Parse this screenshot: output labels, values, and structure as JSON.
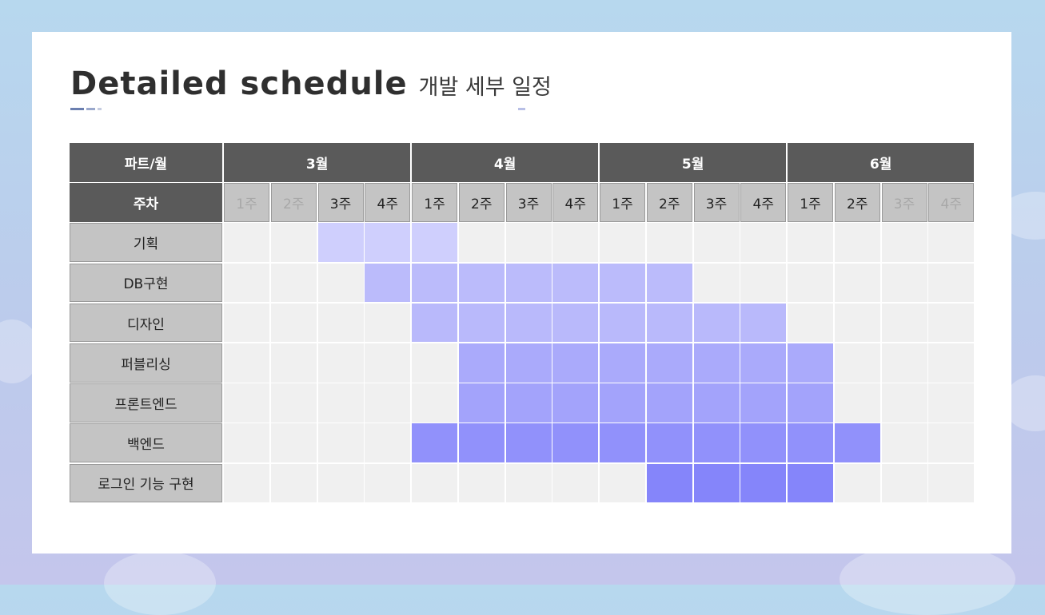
{
  "title": {
    "en": "Detailed schedule",
    "ko": "개발 세부 일정"
  },
  "colors": {
    "header_dark": "#5a5a5a",
    "week_cell": "#c4c4c4",
    "empty_cell": "#f0f0f0"
  },
  "table": {
    "part_month_label": "파트/월",
    "week_label": "주차",
    "months": [
      {
        "label": "3월"
      },
      {
        "label": "4월"
      },
      {
        "label": "5월"
      },
      {
        "label": "6월"
      }
    ],
    "weeks": [
      {
        "label": "1주",
        "dim": true
      },
      {
        "label": "2주",
        "dim": true
      },
      {
        "label": "3주",
        "dim": false
      },
      {
        "label": "4주",
        "dim": false
      },
      {
        "label": "1주",
        "dim": false
      },
      {
        "label": "2주",
        "dim": false
      },
      {
        "label": "3주",
        "dim": false
      },
      {
        "label": "4주",
        "dim": false
      },
      {
        "label": "1주",
        "dim": false
      },
      {
        "label": "2주",
        "dim": false
      },
      {
        "label": "3주",
        "dim": false
      },
      {
        "label": "4주",
        "dim": false
      },
      {
        "label": "1주",
        "dim": false
      },
      {
        "label": "2주",
        "dim": false
      },
      {
        "label": "3주",
        "dim": true
      },
      {
        "label": "4주",
        "dim": true
      }
    ],
    "tasks": [
      {
        "name": "기획",
        "start": 2,
        "end": 4,
        "color": "#cfcffd"
      },
      {
        "name": "DB구현",
        "start": 3,
        "end": 9,
        "color": "#bbbbfb"
      },
      {
        "name": "디자인",
        "start": 4,
        "end": 11,
        "color": "#b9b9fb"
      },
      {
        "name": "퍼블리싱",
        "start": 5,
        "end": 12,
        "color": "#aaaafb"
      },
      {
        "name": "프론트엔드",
        "start": 5,
        "end": 12,
        "color": "#a3a3fb"
      },
      {
        "name": "백엔드",
        "start": 4,
        "end": 13,
        "color": "#9191fb"
      },
      {
        "name": "로그인 기능 구현",
        "start": 9,
        "end": 12,
        "color": "#8585fa"
      }
    ]
  }
}
